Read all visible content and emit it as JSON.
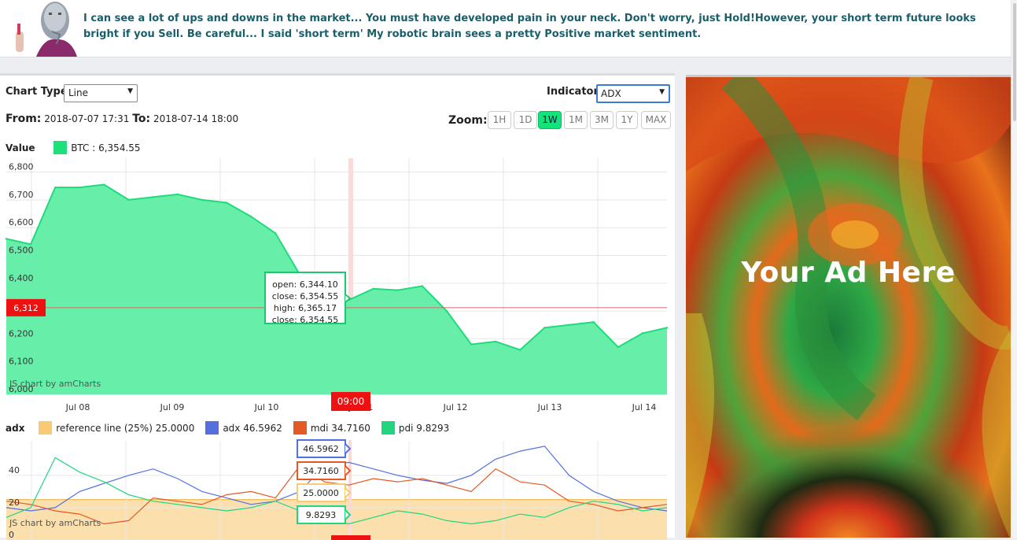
{
  "banner": {
    "message": "I can see a lot of ups and downs in the market... You must have developed pain in your neck. Don't worry, just Hold!However, your short term future looks bright if you Sell. Be careful... I said 'short term' My robotic brain sees a pretty Positive market sentiment."
  },
  "controls": {
    "chart_type_label": "Chart Type:",
    "chart_type_value": "Line",
    "indicator_label": "Indicator:",
    "indicator_value": "ADX",
    "from_label": "From:",
    "from_value": "2018-07-07 17:31",
    "to_label": "To:",
    "to_value": "2018-07-14 18:00",
    "zoom_label": "Zoom:",
    "zoom_options": [
      "1H",
      "1D",
      "1W",
      "1M",
      "3M",
      "1Y",
      "MAX"
    ],
    "zoom_selected": "1W"
  },
  "price_chart": {
    "value_label": "Value",
    "legend": "BTC : 6,354.55",
    "credit": "JS chart by amCharts",
    "y_ticks": [
      "6,000",
      "6,100",
      "6,200",
      "6,300",
      "6,400",
      "6,500",
      "6,600",
      "6,700",
      "6,800"
    ],
    "x_ticks": [
      "Jul 08",
      "Jul 09",
      "Jul 10",
      "Jul 11",
      "Jul 12",
      "Jul 13",
      "Jul 14"
    ],
    "cursor_value": "6,312",
    "cursor_time": "09:00",
    "tooltip": [
      "open: 6,344.10",
      "close: 6,354.55",
      "high: 6,365.17",
      "close: 6,354.55"
    ],
    "fill_color": "#67efaa",
    "line_color": "#1fdb7c"
  },
  "adx_chart": {
    "title": "adx",
    "credit": "JS chart by amCharts",
    "legend": [
      {
        "name": "reference line (25%)",
        "value": "25.0000",
        "color": "#f8cb73"
      },
      {
        "name": "adx",
        "value": "46.5962",
        "color": "#5470e0"
      },
      {
        "name": "mdi",
        "value": "34.7160",
        "color": "#e35a25"
      },
      {
        "name": "pdi",
        "value": "9.8293",
        "color": "#21d67e"
      }
    ],
    "y_ticks": [
      "0",
      "20",
      "40"
    ],
    "tooltips": [
      "46.5962",
      "34.7160",
      "25.0000",
      "9.8293"
    ]
  },
  "ad": {
    "text": "Your Ad Here"
  },
  "chart_data": [
    {
      "type": "area",
      "title": "",
      "xlabel": "",
      "ylabel": "Value",
      "x": [
        "Jul 07 18:00",
        "Jul 08 00:00",
        "Jul 08 06:00",
        "Jul 08 12:00",
        "Jul 08 18:00",
        "Jul 09 00:00",
        "Jul 09 06:00",
        "Jul 09 12:00",
        "Jul 09 18:00",
        "Jul 10 00:00",
        "Jul 10 06:00",
        "Jul 10 12:00",
        "Jul 10 18:00",
        "Jul 11 00:00",
        "Jul 11 06:00",
        "Jul 11 12:00",
        "Jul 11 18:00",
        "Jul 12 00:00",
        "Jul 12 06:00",
        "Jul 12 12:00",
        "Jul 12 18:00",
        "Jul 13 00:00",
        "Jul 13 06:00",
        "Jul 13 12:00",
        "Jul 13 18:00",
        "Jul 14 00:00",
        "Jul 14 06:00",
        "Jul 14 12:00"
      ],
      "series": [
        {
          "name": "BTC",
          "values": [
            6560,
            6540,
            6745,
            6745,
            6755,
            6700,
            6710,
            6720,
            6700,
            6690,
            6640,
            6580,
            6430,
            6350,
            6340,
            6380,
            6375,
            6390,
            6300,
            6180,
            6190,
            6160,
            6240,
            6250,
            6260,
            6170,
            6220,
            6240
          ]
        }
      ],
      "ylim": [
        6000,
        6850
      ]
    },
    {
      "type": "line",
      "title": "",
      "xlabel": "",
      "ylabel": "adx",
      "x_count": 28,
      "series": [
        {
          "name": "reference line (25%)",
          "values": [
            25,
            25,
            25,
            25,
            25,
            25,
            25,
            25,
            25,
            25,
            25,
            25,
            25,
            25,
            25,
            25,
            25,
            25,
            25,
            25,
            25,
            25,
            25,
            25,
            25,
            25,
            25,
            25
          ]
        },
        {
          "name": "adx",
          "values": [
            20,
            18,
            20,
            30,
            35,
            40,
            44,
            38,
            30,
            26,
            22,
            24,
            30,
            46,
            48,
            44,
            40,
            37,
            35,
            40,
            50,
            55,
            58,
            40,
            30,
            24,
            20,
            18
          ]
        },
        {
          "name": "mdi",
          "values": [
            24,
            22,
            18,
            16,
            10,
            12,
            26,
            24,
            22,
            28,
            30,
            26,
            46,
            36,
            34,
            38,
            36,
            38,
            34,
            30,
            44,
            36,
            34,
            24,
            22,
            18,
            20,
            22
          ]
        },
        {
          "name": "pdi",
          "values": [
            14,
            20,
            51,
            42,
            36,
            28,
            24,
            22,
            20,
            18,
            20,
            24,
            18,
            12,
            10,
            14,
            18,
            16,
            12,
            10,
            12,
            16,
            14,
            20,
            24,
            22,
            18,
            20
          ]
        }
      ],
      "ylim": [
        0,
        60
      ]
    }
  ]
}
